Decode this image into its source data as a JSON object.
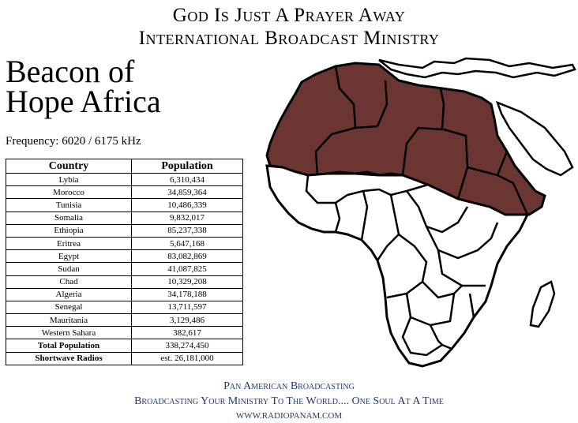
{
  "header": {
    "line1": "God Is Just A Prayer Away",
    "line2": "International Broadcast Ministry"
  },
  "title": {
    "line1": "Beacon of",
    "line2": "Hope Africa"
  },
  "frequency": "Frequency: 6020 / 6175 kHz",
  "table": {
    "headers": [
      "Country",
      "Population"
    ],
    "rows": [
      [
        "Lybia",
        "6,310,434"
      ],
      [
        "Morocco",
        "34,859,364"
      ],
      [
        "Tunisia",
        "10,486,339"
      ],
      [
        "Somalia",
        "9,832,017"
      ],
      [
        "Ethiopia",
        "85,237,338"
      ],
      [
        "Eritrea",
        "5,647,168"
      ],
      [
        "Egypt",
        "83,082,869"
      ],
      [
        "Sudan",
        "41,087,825"
      ],
      [
        "Chad",
        "10,329,208"
      ],
      [
        "Algeria",
        "34,178,188"
      ],
      [
        "Senegal",
        "13,711,597"
      ],
      [
        "Mauritania",
        "3,129,486"
      ],
      [
        "Western Sahara",
        "382,617"
      ]
    ],
    "total_label": "Total Population",
    "total_value": "338,274,450",
    "radios_label": "Shortwave Radios",
    "radios_value": "est. 26,181,000"
  },
  "map": {
    "highlight_color": "#6b3532",
    "base_color": "#ffffff"
  },
  "footer": {
    "line1": "Pan American Broadcasting",
    "line2": "Broadcasting Your Ministry To The World.... One Soul At A Time",
    "line3": "WWW.RADIOPANAM.COM"
  }
}
